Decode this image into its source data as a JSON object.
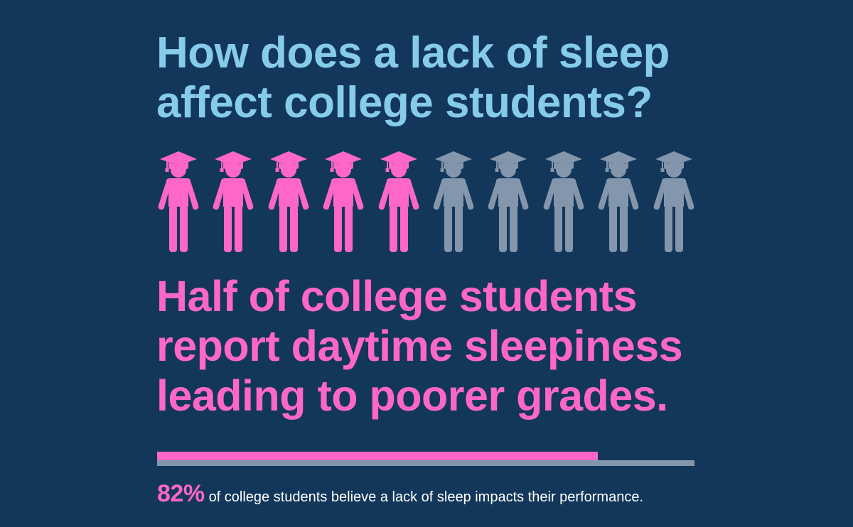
{
  "headline": {
    "lines": [
      "How does a lack of sleep",
      "affect college students?"
    ]
  },
  "pictogram": {
    "total": 10,
    "highlighted": 5,
    "icon": "graduate-student-icon"
  },
  "statement": {
    "lines": [
      "Half of college students",
      "report daytime sleepiness",
      "leading to poorer grades."
    ]
  },
  "performance_bar": {
    "fraction": 0.82
  },
  "footnote": {
    "percent": "82%",
    "text": "of college students believe a lack of sleep impacts their performance."
  },
  "colors": {
    "background": "#12375a",
    "headline": "#86cbea",
    "highlight": "#ff66c9",
    "muted": "#8396ab",
    "text": "#ffffff"
  }
}
